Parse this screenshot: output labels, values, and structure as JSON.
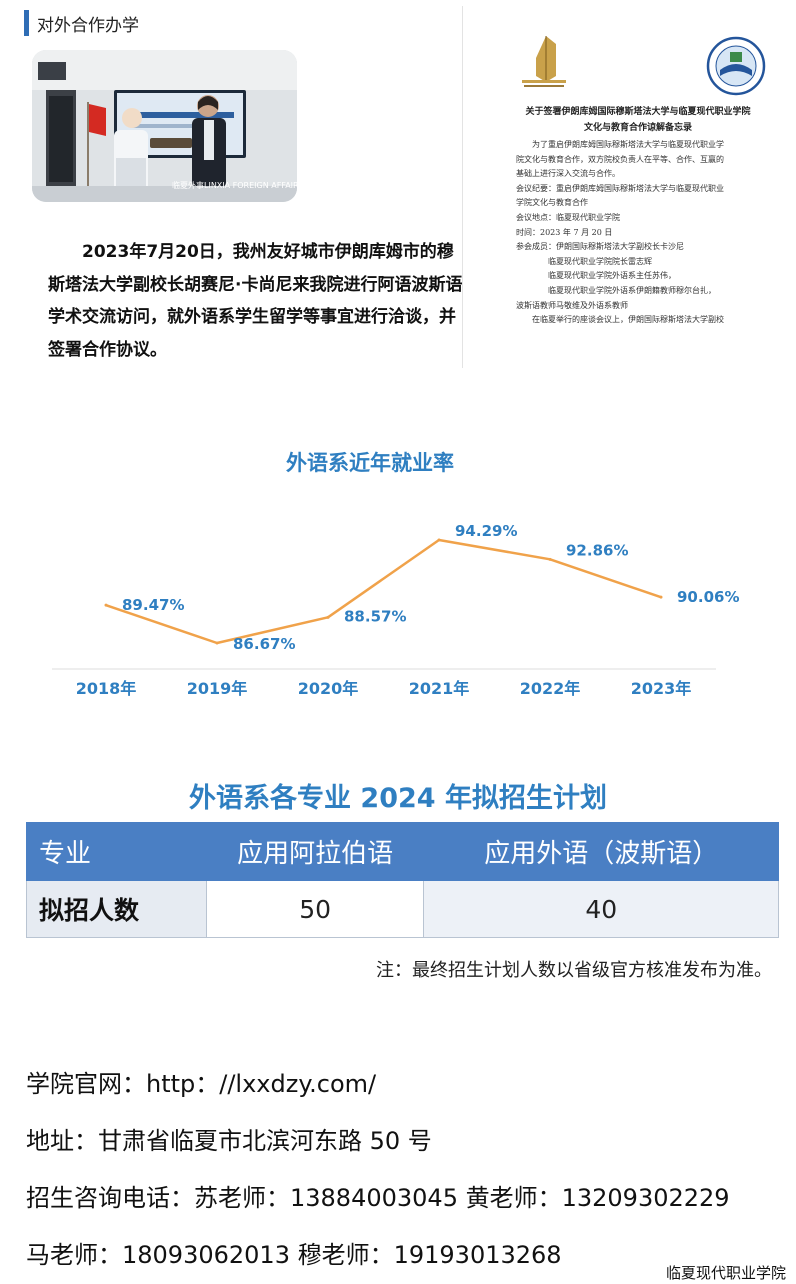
{
  "section": {
    "title": "对外合作办学"
  },
  "photo": {
    "credit": "临夏外事LINXIA FOREIGN AFFAIRS"
  },
  "intro": {
    "text": "2023年7月20日，我州友好城市伊朗库姆市的穆斯塔法大学副校长胡赛尼·卡尚尼来我院进行阿语波斯语学术交流访问，就外语系学生留学等事宜进行洽谈，并签署合作协议。"
  },
  "memo": {
    "title_line1": "关于签署伊朗库姆国际穆斯塔法大学与临夏现代职业学院",
    "title_line2": "文化与教育合作谅解备忘录",
    "lines": [
      {
        "text": "为了重启伊朗库姆国际穆斯塔法大学与临夏现代职业学",
        "indent": 1
      },
      {
        "text": "院文化与教育合作，双方院校负责人在平等、合作、互赢的",
        "indent": 0
      },
      {
        "text": "基础上进行深入交流与合作。",
        "indent": 0
      },
      {
        "text": "会议纪要：重启伊朗库姆国际穆斯塔法大学与临夏现代职业",
        "indent": 0
      },
      {
        "text": "学院文化与教育合作",
        "indent": 0
      },
      {
        "text": "会议地点：临夏现代职业学院",
        "indent": 0
      },
      {
        "text": "时间：2023 年 7 月 20 日",
        "indent": 0
      },
      {
        "text": "参会成员：伊朗国际穆斯塔法大学副校长卡沙尼",
        "indent": 0
      },
      {
        "text": "临夏现代职业学院院长雷志辉",
        "indent": 2
      },
      {
        "text": "临夏现代职业学院外语系主任苏伟，",
        "indent": 2
      },
      {
        "text": "临夏现代职业学院外语系伊朗籍教师穆尔台扎，",
        "indent": 2
      },
      {
        "text": "波斯语教师马敬维及外语系教师",
        "indent": 0
      },
      {
        "text": "在临夏举行的座谈会议上，伊朗国际穆斯塔法大学副校",
        "indent": 1
      }
    ]
  },
  "chart_data": {
    "type": "line",
    "title": "外语系近年就业率",
    "categories": [
      "2018年",
      "2019年",
      "2020年",
      "2021年",
      "2022年",
      "2023年"
    ],
    "series": [
      {
        "values": [
          89.47,
          86.67,
          88.57,
          94.29,
          92.86,
          90.06
        ],
        "labels": [
          "89.47%",
          "86.67%",
          "88.57%",
          "94.29%",
          "92.86%",
          "90.06%"
        ]
      }
    ],
    "ylim": [
      84,
      96
    ],
    "grid": false,
    "line_color": "#f0a24a",
    "axis_color": "#dddddd",
    "label_color": "#2f7fc1"
  },
  "plan": {
    "title": "外语系各专业 2024 年拟招生计划",
    "headers": [
      "专业",
      "应用阿拉伯语",
      "应用外语（波斯语）"
    ],
    "row": [
      "拟招人数",
      "50",
      "40"
    ],
    "note": "注：最终招生计划人数以省级官方核准发布为准。"
  },
  "contact": {
    "website": "学院官网：http：//lxxdzy.com/",
    "address": "地址：甘肃省临夏市北滨河东路 50 号",
    "phone_line1": "招生咨询电话：苏老师：13884003045 黄老师：13209302229",
    "phone_line2": "马老师：18093062013 穆老师：19193013268"
  },
  "footer": {
    "brand": "临夏现代职业学院"
  },
  "colors": {
    "accent_blue": "#2f7fc1",
    "table_header": "#4a7fc4",
    "line_orange": "#f0a24a"
  }
}
